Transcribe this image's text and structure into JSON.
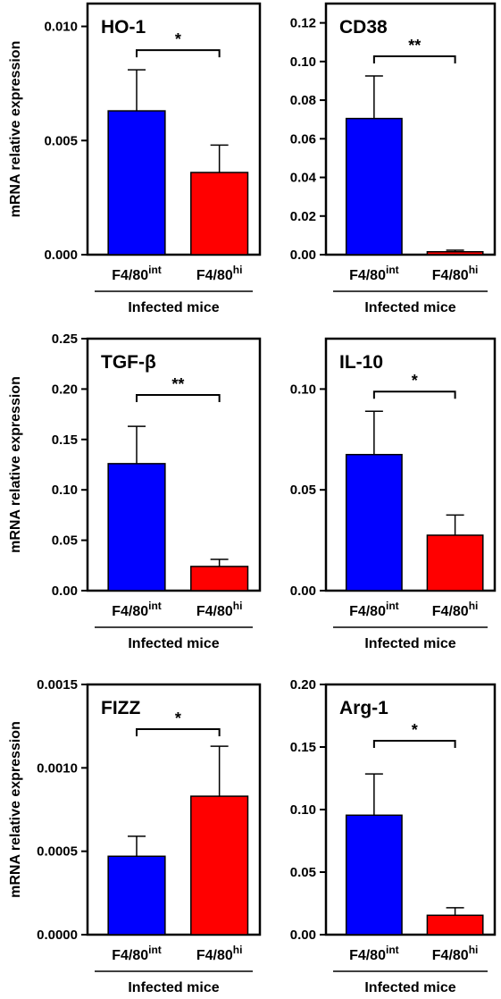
{
  "colors": {
    "int": "#0000ff",
    "hi": "#ff0000",
    "axis": "#000000"
  },
  "chart_data": [
    {
      "type": "bar",
      "title": "HO-1",
      "ylabel": "mRNA relative expression",
      "xgroup": "Infected mice",
      "categories": [
        {
          "base": "F4/80",
          "sup": "int"
        },
        {
          "base": "F4/80",
          "sup": "hi"
        }
      ],
      "values": [
        0.0063,
        0.0036
      ],
      "errors": [
        0.0018,
        0.0012
      ],
      "ylim": [
        0,
        0.011
      ],
      "yticks": [
        "0.000",
        "0.005",
        "0.010"
      ],
      "significance": "*"
    },
    {
      "type": "bar",
      "title": "CD38",
      "ylabel": "",
      "xgroup": "Infected mice",
      "categories": [
        {
          "base": "F4/80",
          "sup": "int"
        },
        {
          "base": "F4/80",
          "sup": "hi"
        }
      ],
      "values": [
        0.0705,
        0.0015
      ],
      "errors": [
        0.022,
        0.0008
      ],
      "ylim": [
        0,
        0.13
      ],
      "yticks": [
        "0.00",
        "0.02",
        "0.04",
        "0.06",
        "0.08",
        "0.10",
        "0.12"
      ],
      "significance": "**"
    },
    {
      "type": "bar",
      "title": "TGF-β",
      "ylabel": "mRNA relative expression",
      "xgroup": "Infected mice",
      "categories": [
        {
          "base": "F4/80",
          "sup": "int"
        },
        {
          "base": "F4/80",
          "sup": "hi"
        }
      ],
      "values": [
        0.126,
        0.024
      ],
      "errors": [
        0.037,
        0.007
      ],
      "ylim": [
        0,
        0.25
      ],
      "yticks": [
        "0.00",
        "0.05",
        "0.10",
        "0.15",
        "0.20",
        "0.25"
      ],
      "significance": "**"
    },
    {
      "type": "bar",
      "title": "IL-10",
      "ylabel": "",
      "xgroup": "Infected mice",
      "categories": [
        {
          "base": "F4/80",
          "sup": "int"
        },
        {
          "base": "F4/80",
          "sup": "hi"
        }
      ],
      "values": [
        0.0675,
        0.0275
      ],
      "errors": [
        0.0215,
        0.01
      ],
      "ylim": [
        0,
        0.125
      ],
      "yticks": [
        "0.00",
        "0.05",
        "0.10"
      ],
      "significance": "*"
    },
    {
      "type": "bar",
      "title": "FIZZ",
      "ylabel": "mRNA relative expression",
      "xgroup": "Infected mice",
      "categories": [
        {
          "base": "F4/80",
          "sup": "int"
        },
        {
          "base": "F4/80",
          "sup": "hi"
        }
      ],
      "values": [
        0.00047,
        0.00083
      ],
      "errors": [
        0.00012,
        0.0003
      ],
      "ylim": [
        0,
        0.0015
      ],
      "yticks": [
        "0.0000",
        "0.0005",
        "0.0010",
        "0.0015"
      ],
      "significance": "*"
    },
    {
      "type": "bar",
      "title": "Arg-1",
      "ylabel": "",
      "xgroup": "Infected mice",
      "categories": [
        {
          "base": "F4/80",
          "sup": "int"
        },
        {
          "base": "F4/80",
          "sup": "hi"
        }
      ],
      "values": [
        0.0955,
        0.0155
      ],
      "errors": [
        0.033,
        0.006
      ],
      "ylim": [
        0,
        0.2
      ],
      "yticks": [
        "0.00",
        "0.05",
        "0.10",
        "0.15",
        "0.20"
      ],
      "significance": "*"
    }
  ]
}
